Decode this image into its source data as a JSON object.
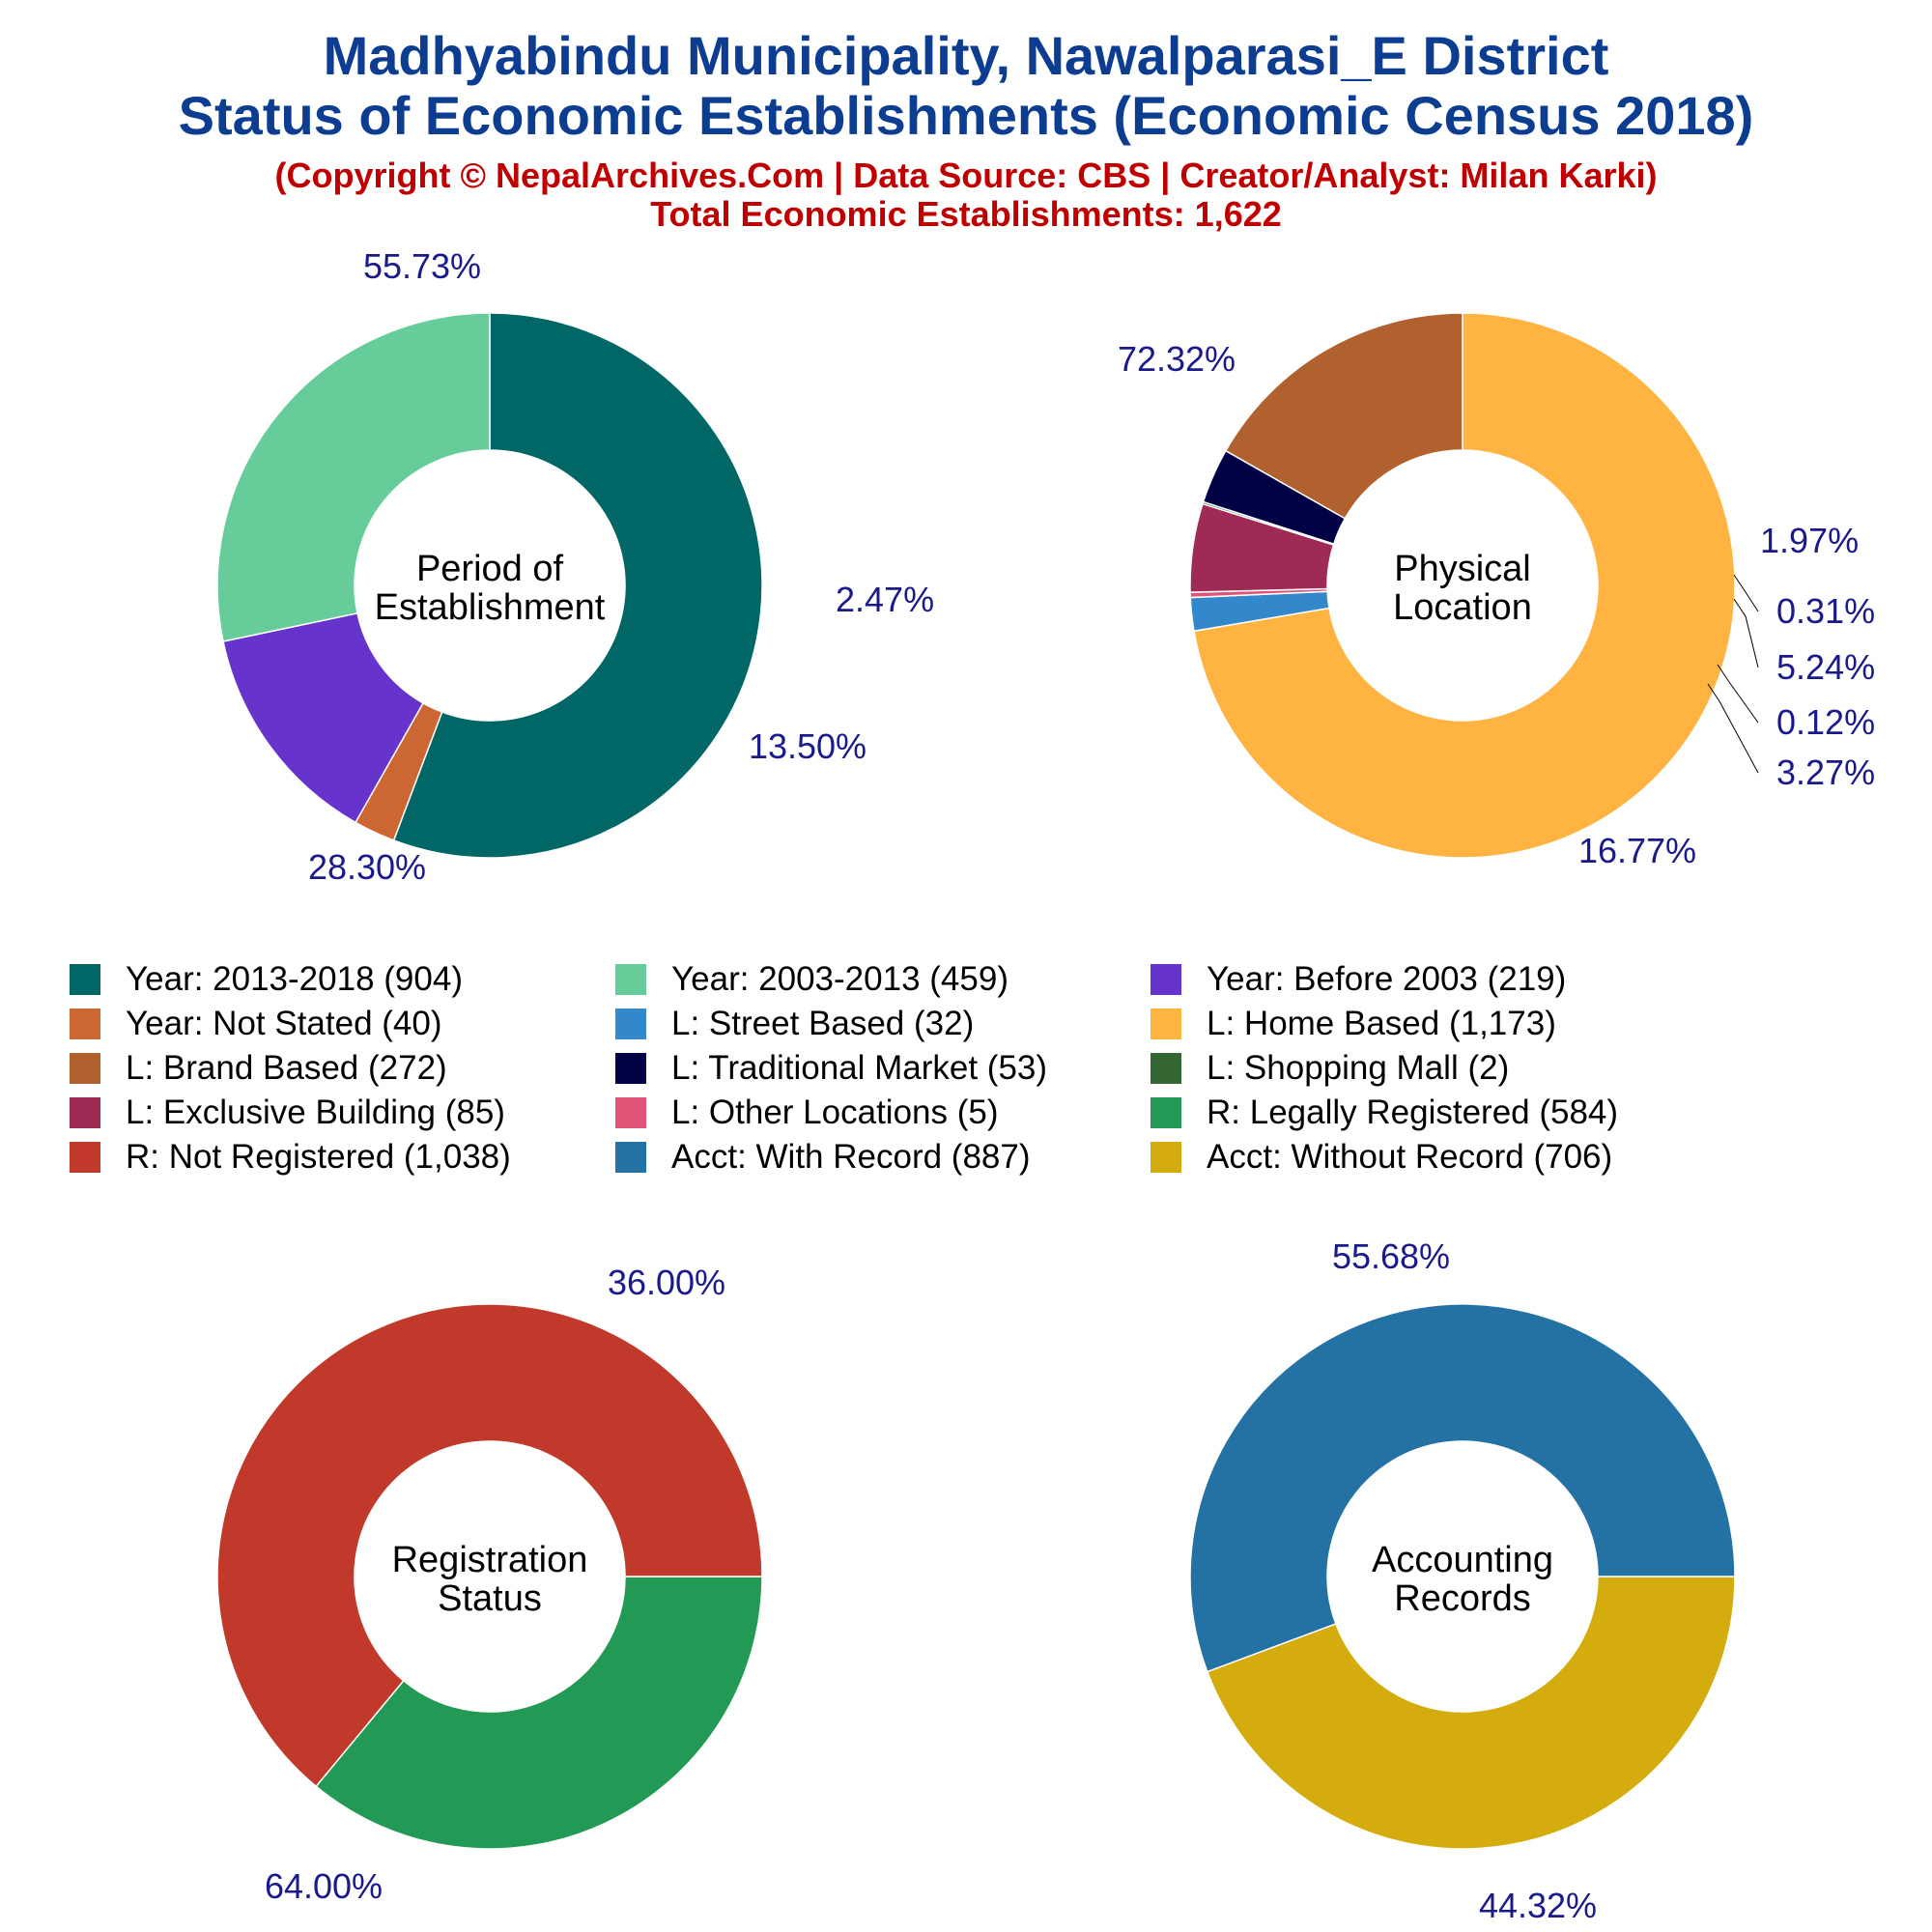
{
  "title_line1": "Madhyabindu Municipality, Nawalparasi_E District",
  "title_line2": "Status of Economic Establishments (Economic Census 2018)",
  "subtitle": "(Copyright © NepalArchives.Com | Data Source: CBS | Creator/Analyst: Milan Karki)",
  "total": "Total Economic Establishments: 1,622",
  "chart_data": [
    {
      "type": "pie",
      "center_label": [
        "Period of",
        "Establishment"
      ],
      "slices": [
        {
          "name": "Year: 2013-2018",
          "value": 904,
          "percent_label": "55.73%",
          "color": "#006666"
        },
        {
          "name": "Year: Not Stated",
          "value": 40,
          "percent_label": "2.47%",
          "color": "#cc6633"
        },
        {
          "name": "Year: Before 2003",
          "value": 219,
          "percent_label": "13.50%",
          "color": "#6633cc"
        },
        {
          "name": "Year: 2003-2013",
          "value": 459,
          "percent_label": "28.30%",
          "color": "#66cc99"
        }
      ]
    },
    {
      "type": "pie",
      "center_label": [
        "Physical",
        "Location"
      ],
      "slices": [
        {
          "name": "L: Home Based",
          "value": 1173,
          "percent_label": "72.32%",
          "color": "#ffb340"
        },
        {
          "name": "L: Street Based",
          "value": 32,
          "percent_label": "1.97%",
          "color": "#3388cc"
        },
        {
          "name": "L: Other Locations",
          "value": 5,
          "percent_label": "0.31%",
          "color": "#e05577"
        },
        {
          "name": "L: Exclusive Building",
          "value": 85,
          "percent_label": "5.24%",
          "color": "#9e2a55"
        },
        {
          "name": "L: Shopping Mall",
          "value": 2,
          "percent_label": "0.12%",
          "color": "#336633"
        },
        {
          "name": "L: Traditional Market",
          "value": 53,
          "percent_label": "3.27%",
          "color": "#000044"
        },
        {
          "name": "L: Brand Based",
          "value": 272,
          "percent_label": "16.77%",
          "color": "#b0612e"
        }
      ]
    },
    {
      "type": "pie",
      "center_label": [
        "Registration",
        "Status"
      ],
      "slices": [
        {
          "name": "R: Legally Registered",
          "value": 584,
          "percent_label": "36.00%",
          "color": "#229955"
        },
        {
          "name": "R: Not Registered",
          "value": 1038,
          "percent_label": "64.00%",
          "color": "#c0392b"
        }
      ]
    },
    {
      "type": "pie",
      "center_label": [
        "Accounting",
        "Records"
      ],
      "slices": [
        {
          "name": "Acct: Without Record",
          "value": 706,
          "percent_label": "44.32%",
          "color": "#d4ac0d"
        },
        {
          "name": "Acct: With Record",
          "value": 887,
          "percent_label": "55.68%",
          "color": "#2471a3"
        }
      ]
    }
  ],
  "legend": [
    {
      "label": "Year: 2013-2018 (904)",
      "color": "#006666"
    },
    {
      "label": "Year: 2003-2013 (459)",
      "color": "#66cc99"
    },
    {
      "label": "Year: Before 2003 (219)",
      "color": "#6633cc"
    },
    {
      "label": "Year: Not Stated (40)",
      "color": "#cc6633"
    },
    {
      "label": "L: Street Based (32)",
      "color": "#3388cc"
    },
    {
      "label": "L: Home Based (1,173)",
      "color": "#ffb340"
    },
    {
      "label": "L: Brand Based (272)",
      "color": "#b0612e"
    },
    {
      "label": "L: Traditional Market (53)",
      "color": "#000044"
    },
    {
      "label": "L: Shopping Mall (2)",
      "color": "#336633"
    },
    {
      "label": "L: Exclusive Building (85)",
      "color": "#9e2a55"
    },
    {
      "label": "L: Other Locations (5)",
      "color": "#e05577"
    },
    {
      "label": "R: Legally Registered (584)",
      "color": "#229955"
    },
    {
      "label": "R: Not Registered (1,038)",
      "color": "#c0392b"
    },
    {
      "label": "Acct: With Record (887)",
      "color": "#2471a3"
    },
    {
      "label": "Acct: Without Record (706)",
      "color": "#d4ac0d"
    }
  ]
}
